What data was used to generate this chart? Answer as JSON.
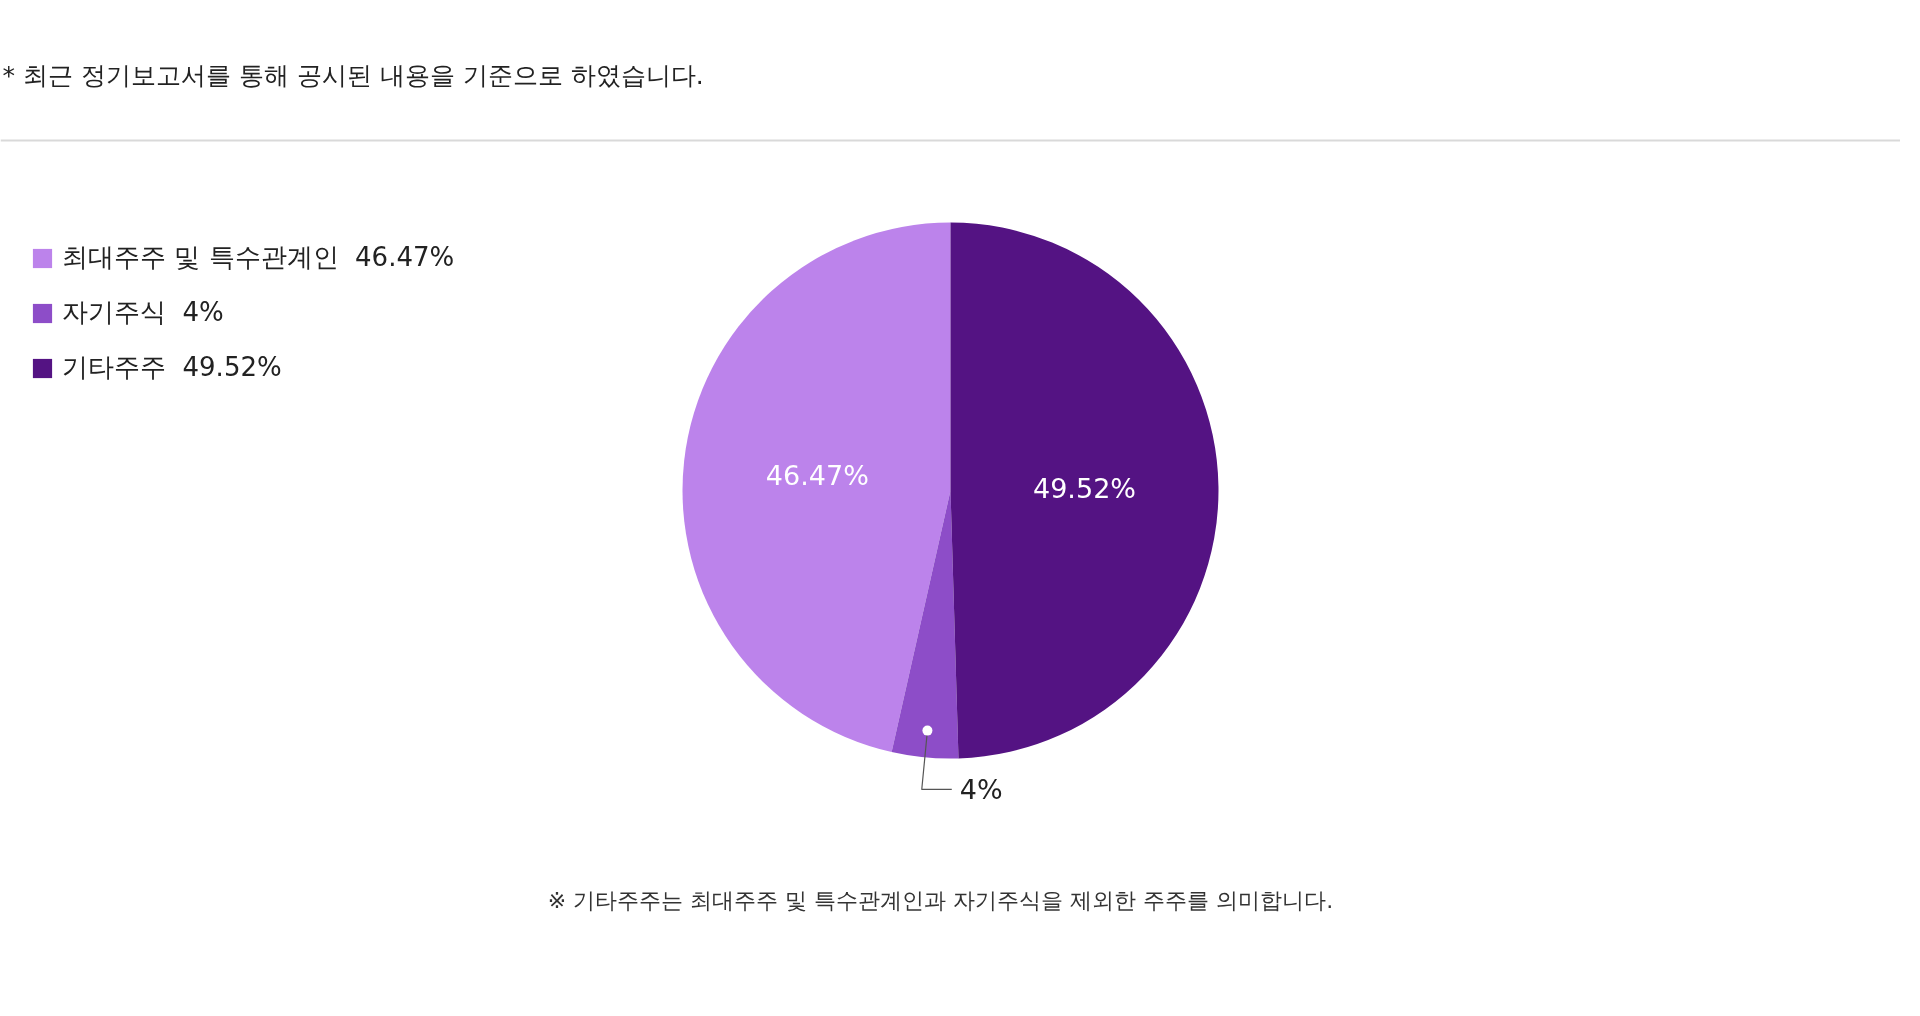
{
  "chart_data": {
    "type": "pie",
    "categories": [
      "최대주주 및 특수관계인",
      "자기주식",
      "기타주주"
    ],
    "values": [
      46.47,
      4,
      49.52
    ],
    "colors": [
      "#bc83eb",
      "#8d4dc8",
      "#541383"
    ],
    "value_labels": [
      "46.47%",
      "4%",
      "49.52%"
    ],
    "legend": "top left",
    "annotations": [
      "* 최근 정기보고서를 통해 공시된 내용을 기준으로 하였습니다.",
      "※ 기타주주는 최대주주 및 특수관계인과 자기주식을 제외한 주주를 의미합니다."
    ]
  }
}
